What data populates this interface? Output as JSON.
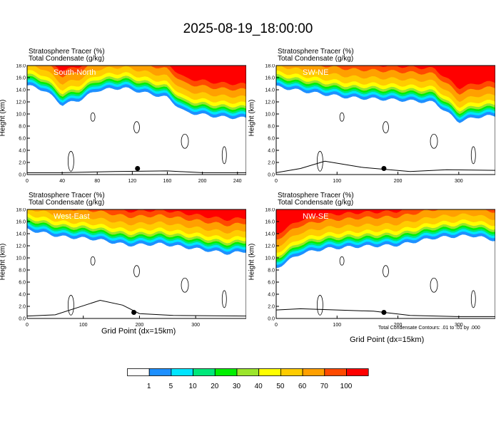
{
  "title": "2025-08-19_18:00:00",
  "panel_labels": {
    "line1": "Stratosphere Tracer    (%)",
    "line2": "Total Condensate    (g/kg)",
    "ylabel": "Height (km)",
    "xlabel": "Grid Point (dx=15km)"
  },
  "footnote": "Total Condensate Contours: .01 to .01 by .000",
  "colors": {
    "levels": [
      "#ffffff",
      "#1e90ff",
      "#00e5ff",
      "#00e87a",
      "#00f000",
      "#9be52b",
      "#ffff00",
      "#ffcc00",
      "#ffa000",
      "#ff4a00",
      "#ff0000"
    ],
    "contour": "#000000"
  },
  "colorbar_labels": [
    "1",
    "5",
    "10",
    "20",
    "30",
    "40",
    "50",
    "60",
    "70",
    "100"
  ],
  "chart_data": [
    {
      "type": "heatmap",
      "name": "South-North",
      "xlim": [
        0,
        250
      ],
      "ylim": [
        0,
        18
      ],
      "xticks": [
        "0",
        "40",
        "80",
        "120",
        "160",
        "200",
        "240"
      ],
      "yticks": [
        "0.0",
        "2.0",
        "4.0",
        "6.0",
        "8.0",
        "10.0",
        "12.0",
        "14.0",
        "16.0",
        "18.0"
      ],
      "tracer_top_profile": [
        [
          0,
          15.6
        ],
        [
          20,
          14.8
        ],
        [
          40,
          12.4
        ],
        [
          60,
          13.2
        ],
        [
          80,
          14.8
        ],
        [
          110,
          15.2
        ],
        [
          140,
          14.2
        ],
        [
          160,
          13.6
        ],
        [
          180,
          11.2
        ],
        [
          200,
          10.8
        ],
        [
          220,
          10.4
        ],
        [
          250,
          10.2
        ]
      ],
      "marker": [
        126,
        1.0
      ],
      "terrain_profile": [
        [
          0,
          0.3
        ],
        [
          40,
          0.3
        ],
        [
          100,
          0.5
        ],
        [
          160,
          0.6
        ],
        [
          200,
          0.3
        ],
        [
          250,
          0.3
        ]
      ]
    },
    {
      "type": "heatmap",
      "name": "SW-NE",
      "xlim": [
        0,
        360
      ],
      "ylim": [
        0,
        18
      ],
      "xticks": [
        "0",
        "100",
        "200",
        "300"
      ],
      "yticks": [
        "0.0",
        "2.0",
        "4.0",
        "6.0",
        "8.0",
        "10.0",
        "12.0",
        "14.0",
        "16.0",
        "18.0"
      ],
      "tracer_top_profile": [
        [
          0,
          15.4
        ],
        [
          60,
          14.4
        ],
        [
          120,
          13.6
        ],
        [
          200,
          13.2
        ],
        [
          260,
          12.8
        ],
        [
          300,
          9.6
        ],
        [
          330,
          10.4
        ],
        [
          360,
          10.6
        ]
      ],
      "marker": [
        177,
        1.0
      ],
      "terrain_profile": [
        [
          0,
          0.3
        ],
        [
          40,
          1.0
        ],
        [
          80,
          2.2
        ],
        [
          140,
          1.2
        ],
        [
          220,
          0.5
        ],
        [
          280,
          0.8
        ],
        [
          360,
          0.7
        ]
      ]
    },
    {
      "type": "heatmap",
      "name": "West-East",
      "xlim": [
        0,
        390
      ],
      "ylim": [
        0,
        18
      ],
      "xticks": [
        "0",
        "100",
        "200",
        "300"
      ],
      "yticks": [
        "0.0",
        "2.0",
        "4.0",
        "6.0",
        "8.0",
        "10.0",
        "12.0",
        "14.0",
        "16.0",
        "18.0"
      ],
      "tracer_top_profile": [
        [
          0,
          15.6
        ],
        [
          60,
          14.4
        ],
        [
          120,
          14.0
        ],
        [
          180,
          13.0
        ],
        [
          240,
          13.2
        ],
        [
          300,
          12.4
        ],
        [
          360,
          11.6
        ],
        [
          390,
          12.0
        ]
      ],
      "marker": [
        190,
        1.0
      ],
      "terrain_profile": [
        [
          0,
          0.4
        ],
        [
          50,
          0.6
        ],
        [
          90,
          1.8
        ],
        [
          130,
          3.0
        ],
        [
          170,
          2.2
        ],
        [
          200,
          0.8
        ],
        [
          260,
          0.5
        ],
        [
          390,
          0.4
        ]
      ]
    },
    {
      "type": "heatmap",
      "name": "NW-SE",
      "xlim": [
        0,
        360
      ],
      "ylim": [
        0,
        18
      ],
      "xticks": [
        "0",
        "100",
        "200",
        "300"
      ],
      "yticks": [
        "0.0",
        "2.0",
        "4.0",
        "6.0",
        "8.0",
        "10.0",
        "12.0",
        "14.0",
        "16.0",
        "18.0"
      ],
      "tracer_top_profile": [
        [
          0,
          9.2
        ],
        [
          40,
          11.6
        ],
        [
          80,
          12.4
        ],
        [
          140,
          12.8
        ],
        [
          200,
          13.0
        ],
        [
          260,
          14.2
        ],
        [
          320,
          14.6
        ],
        [
          360,
          13.8
        ]
      ],
      "marker": [
        177,
        1.0
      ],
      "terrain_profile": [
        [
          0,
          1.4
        ],
        [
          40,
          1.6
        ],
        [
          100,
          1.4
        ],
        [
          160,
          1.2
        ],
        [
          220,
          0.5
        ],
        [
          300,
          0.3
        ],
        [
          360,
          0.3
        ]
      ]
    }
  ]
}
